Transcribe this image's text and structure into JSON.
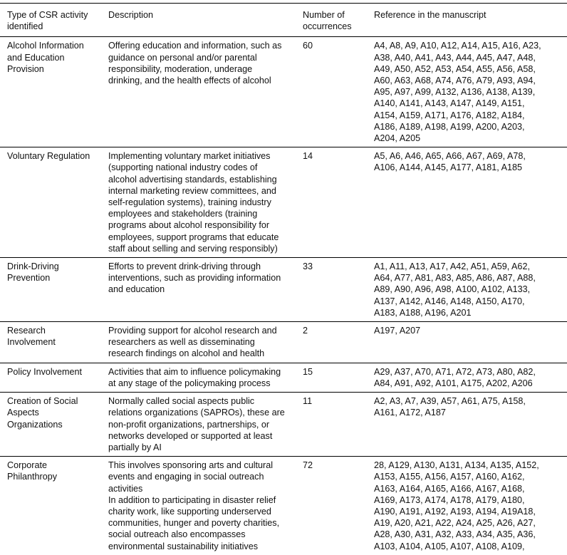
{
  "headers": [
    "Type of CSR activity\nidentified",
    "Description",
    "Number of\noccurrences",
    "Reference in the manuscript"
  ],
  "rows": [
    {
      "type": "Alcohol Information\nand Education\nProvision",
      "description": "Offering education and information, such as\nguidance on personal and/or parental\nresponsibility, moderation, underage\ndrinking, and the health effects of alcohol",
      "count": "60",
      "refs": "A4, A8, A9, A10, A12, A14, A15, A16, A23,\nA38, A40, A41, A43, A44, A45, A47, A48,\nA49, A50, A52, A53, A54, A55, A56, A58,\nA60, A63, A68, A74, A76, A79, A93, A94,\nA95, A97, A99, A132, A136, A138, A139,\nA140, A141, A143, A147, A149, A151,\nA154, A159, A171, A176, A182, A184,\nA186, A189, A198, A199, A200, A203,\nA204, A205"
    },
    {
      "type": "Voluntary Regulation",
      "description": "Implementing voluntary market initiatives\n(supporting national industry codes of\nalcohol advertising standards, establishing\ninternal marketing review committees, and\nself-regulation systems), training industry\nemployees and stakeholders (training\nprograms about alcohol responsibility for\nemployees, support programs that educate\nstaff about selling and serving responsibly)",
      "count": "14",
      "refs": "A5, A6, A46, A65, A66, A67, A69, A78,\nA106, A144, A145, A177, A181, A185"
    },
    {
      "type": "Drink-Driving\nPrevention",
      "description": "Efforts to prevent drink-driving through\ninterventions, such as providing information\nand education",
      "count": "33",
      "refs": "A1, A11, A13, A17, A42, A51, A59, A62,\nA64, A77, A81, A83, A85, A86, A87, A88,\nA89, A90, A96, A98, A100, A102, A133,\nA137, A142, A146, A148, A150, A170,\nA183, A188, A196, A201"
    },
    {
      "type": "Research\nInvolvement",
      "description": "Providing support for alcohol research and\nresearchers as well as disseminating\nresearch findings on alcohol and health",
      "count": "2",
      "refs": "A197, A207"
    },
    {
      "type": "Policy Involvement",
      "description": "Activities that aim to influence policymaking\nat any stage of the policymaking process",
      "count": "15",
      "refs": "A29, A37, A70, A71, A72, A73, A80, A82,\nA84, A91, A92, A101, A175, A202, A206"
    },
    {
      "type": "Creation of Social\nAspects\nOrganizations",
      "description": "Normally called social aspects public\nrelations organizations (SAPROs), these are\nnon-profit organizations, partnerships, or\nnetworks developed or supported at least\npartially by AI",
      "count": "11",
      "refs": "A2, A3, A7, A39, A57, A61, A75, A158,\nA161, A172, A187"
    },
    {
      "type": "Corporate\nPhilanthropy",
      "description": "This involves sponsoring arts and cultural\nevents and engaging in social outreach\nactivities\nIn addition to participating in disaster relief\ncharity work, like supporting underserved\ncommunities, hunger and poverty charities,\nsocial outreach also encompasses\nenvironmental sustainability initiatives",
      "count": "72",
      "refs": "28, A129, A130, A131, A134, A135, A152,\nA153, A155, A156, A157, A160, A162,\nA163, A164, A165, A166, A167, A168,\nA169, A173, A174, A178, A179, A180,\nA190, A191, A192, A193, A194, A19A18,\nA19, A20, A21, A22, A24, A25, A26, A27,\nA28, A30, A31, A32, A33, A34, A35, A36,\nA103, A104, A105, A107, A108, A109,"
    }
  ]
}
